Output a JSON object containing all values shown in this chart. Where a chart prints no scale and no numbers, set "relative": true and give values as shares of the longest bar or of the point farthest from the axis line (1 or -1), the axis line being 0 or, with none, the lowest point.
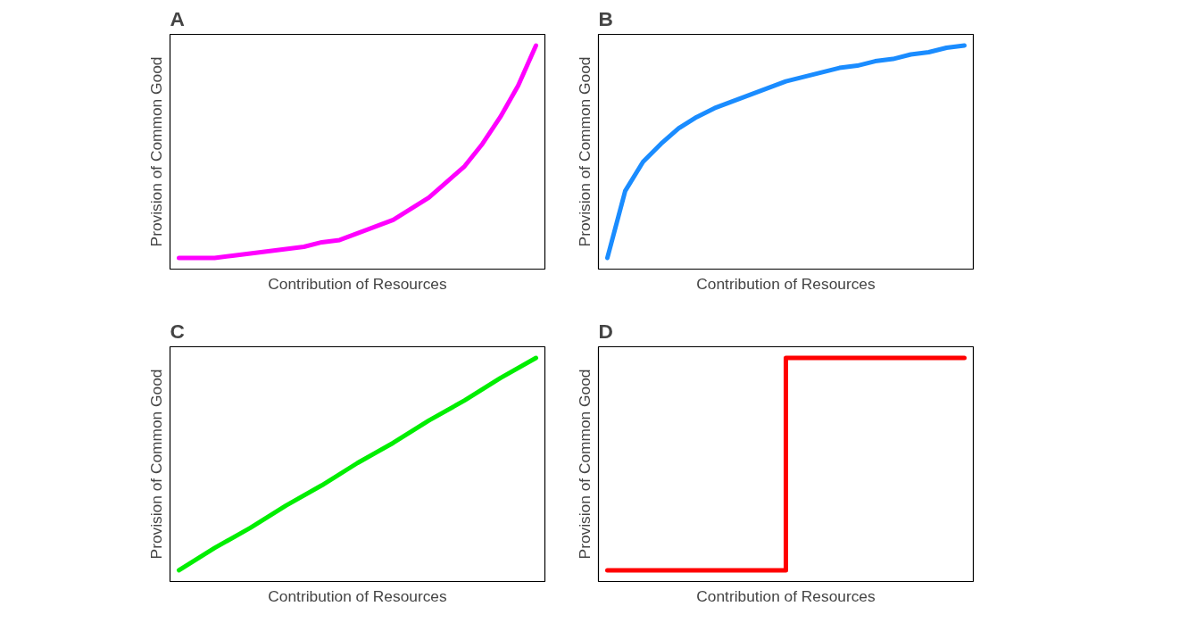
{
  "chart_data": [
    {
      "type": "line",
      "title": "A",
      "xlabel": "Contribution of Resources",
      "ylabel": "Provision of Common Good",
      "relative": true,
      "tick_labels": false,
      "categories": [
        null,
        null,
        null,
        null,
        null,
        null,
        null,
        null,
        null,
        null,
        null,
        null,
        null,
        null,
        null,
        null,
        null,
        null,
        null,
        null,
        null
      ],
      "series": [
        {
          "color": "#ff00ff",
          "values": [
            0.05,
            0.05,
            0.05,
            0.06,
            0.07,
            0.08,
            0.09,
            0.1,
            0.12,
            0.13,
            0.16,
            0.19,
            0.22,
            0.27,
            0.32,
            0.39,
            0.46,
            0.56,
            0.68,
            0.82,
            1
          ]
        }
      ]
    },
    {
      "type": "line",
      "title": "B",
      "xlabel": "Contribution of Resources",
      "ylabel": "Provision of Common Good",
      "relative": true,
      "tick_labels": false,
      "categories": [
        null,
        null,
        null,
        null,
        null,
        null,
        null,
        null,
        null,
        null,
        null,
        null,
        null,
        null,
        null,
        null,
        null,
        null,
        null,
        null,
        null
      ],
      "series": [
        {
          "color": "#1a8cff",
          "values": [
            0.05,
            0.35,
            0.48,
            0.56,
            0.63,
            0.68,
            0.72,
            0.75,
            0.78,
            0.81,
            0.84,
            0.86,
            0.88,
            0.9,
            0.91,
            0.93,
            0.94,
            0.96,
            0.97,
            0.99,
            1
          ]
        }
      ]
    },
    {
      "type": "line",
      "title": "C",
      "xlabel": "Contribution of Resources",
      "ylabel": "Provision of Common Good",
      "relative": true,
      "tick_labels": false,
      "categories": [
        null,
        null,
        null,
        null,
        null,
        null,
        null,
        null,
        null,
        null,
        null
      ],
      "series": [
        {
          "color": "#00ee00",
          "values": [
            0.05,
            0.15,
            0.24,
            0.34,
            0.43,
            0.53,
            0.62,
            0.72,
            0.81,
            0.91,
            1
          ]
        }
      ]
    },
    {
      "type": "step",
      "title": "D",
      "xlabel": "Contribution of Resources",
      "ylabel": "Provision of Common Good",
      "relative": true,
      "tick_labels": false,
      "categories": [
        null,
        null,
        null
      ],
      "series": [
        {
          "color": "#ff0000",
          "values": [
            0.05,
            1,
            1
          ]
        }
      ]
    }
  ]
}
